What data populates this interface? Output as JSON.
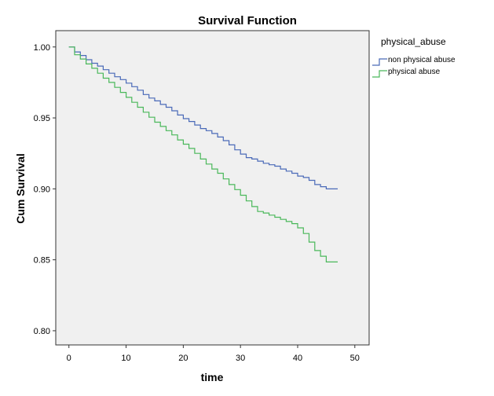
{
  "chart_data": {
    "type": "line",
    "step": true,
    "title": "Survival Function",
    "xlabel": "time",
    "ylabel": "Cum Survival",
    "xlim": [
      -2.3,
      52.5
    ],
    "ylim": [
      0.79,
      1.0115
    ],
    "xticks": [
      0,
      10,
      20,
      30,
      40,
      50
    ],
    "xtick_labels": [
      "0",
      "10",
      "20",
      "30",
      "40",
      "50"
    ],
    "yticks": [
      0.8,
      0.85,
      0.9,
      0.95,
      1.0
    ],
    "ytick_labels": [
      "0.80",
      "0.85",
      "0.90",
      "0.95",
      "1.00"
    ],
    "legend": {
      "title": "physical_abuse",
      "position": "right"
    },
    "series": [
      {
        "name": "non physical abuse",
        "color": "#4a6ab8",
        "points": [
          [
            0,
            1.0
          ],
          [
            1,
            0.9965
          ],
          [
            2,
            0.994
          ],
          [
            3,
            0.991
          ],
          [
            4,
            0.9885
          ],
          [
            5,
            0.9865
          ],
          [
            6,
            0.984
          ],
          [
            7,
            0.9815
          ],
          [
            8,
            0.979
          ],
          [
            9,
            0.977
          ],
          [
            10,
            0.9745
          ],
          [
            11,
            0.972
          ],
          [
            12,
            0.9695
          ],
          [
            13,
            0.9665
          ],
          [
            14,
            0.964
          ],
          [
            15,
            0.962
          ],
          [
            16,
            0.9595
          ],
          [
            17,
            0.9575
          ],
          [
            18,
            0.955
          ],
          [
            19,
            0.952
          ],
          [
            20,
            0.9495
          ],
          [
            21,
            0.9475
          ],
          [
            22,
            0.945
          ],
          [
            23,
            0.9425
          ],
          [
            24,
            0.941
          ],
          [
            25,
            0.939
          ],
          [
            26,
            0.9365
          ],
          [
            27,
            0.934
          ],
          [
            28,
            0.931
          ],
          [
            29,
            0.9275
          ],
          [
            30,
            0.9245
          ],
          [
            31,
            0.922
          ],
          [
            32,
            0.921
          ],
          [
            33,
            0.9195
          ],
          [
            34,
            0.918
          ],
          [
            35,
            0.917
          ],
          [
            36,
            0.916
          ],
          [
            37,
            0.914
          ],
          [
            38,
            0.9125
          ],
          [
            39,
            0.911
          ],
          [
            40,
            0.909
          ],
          [
            41,
            0.908
          ],
          [
            42,
            0.906
          ],
          [
            43,
            0.903
          ],
          [
            44,
            0.9015
          ],
          [
            45,
            0.9
          ],
          [
            47,
            0.9
          ]
        ]
      },
      {
        "name": "physical abuse",
        "color": "#4ab85a",
        "points": [
          [
            0,
            1.0
          ],
          [
            1,
            0.9945
          ],
          [
            2,
            0.9915
          ],
          [
            3,
            0.988
          ],
          [
            4,
            0.985
          ],
          [
            5,
            0.9815
          ],
          [
            6,
            0.978
          ],
          [
            7,
            0.975
          ],
          [
            8,
            0.9715
          ],
          [
            9,
            0.968
          ],
          [
            10,
            0.9645
          ],
          [
            11,
            0.961
          ],
          [
            12,
            0.9575
          ],
          [
            13,
            0.954
          ],
          [
            14,
            0.9505
          ],
          [
            15,
            0.947
          ],
          [
            16,
            0.944
          ],
          [
            17,
            0.941
          ],
          [
            18,
            0.938
          ],
          [
            19,
            0.9345
          ],
          [
            20,
            0.9315
          ],
          [
            21,
            0.9285
          ],
          [
            22,
            0.925
          ],
          [
            23,
            0.921
          ],
          [
            24,
            0.9175
          ],
          [
            25,
            0.914
          ],
          [
            26,
            0.911
          ],
          [
            27,
            0.907
          ],
          [
            28,
            0.903
          ],
          [
            29,
            0.8995
          ],
          [
            30,
            0.8955
          ],
          [
            31,
            0.8915
          ],
          [
            32,
            0.8875
          ],
          [
            33,
            0.884
          ],
          [
            34,
            0.883
          ],
          [
            35,
            0.8815
          ],
          [
            36,
            0.88
          ],
          [
            37,
            0.8785
          ],
          [
            38,
            0.877
          ],
          [
            39,
            0.8755
          ],
          [
            40,
            0.8725
          ],
          [
            41,
            0.8685
          ],
          [
            42,
            0.8625
          ],
          [
            43,
            0.8565
          ],
          [
            44,
            0.8525
          ],
          [
            45,
            0.8485
          ],
          [
            47,
            0.8485
          ]
        ]
      }
    ]
  }
}
